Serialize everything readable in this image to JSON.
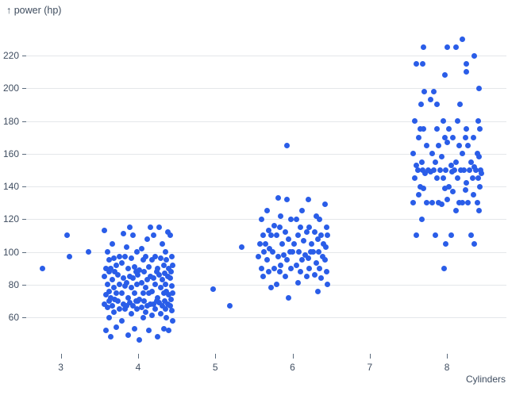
{
  "title": "↑ power (hp)",
  "x_axis": {
    "label": "Cylinders",
    "ticks": [
      "3",
      "4",
      "5",
      "6",
      "7",
      "8"
    ]
  },
  "y_axis": {
    "ticks": [
      "60",
      "80",
      "100",
      "120",
      "140",
      "160",
      "180",
      "200",
      "220"
    ]
  },
  "colors": {
    "dot": "#2a5de8",
    "grid": "#e4e7ea",
    "text": "#3f4d60"
  },
  "chart_data": {
    "type": "scatter",
    "title": "↑ power (hp)",
    "xlabel": "Cylinders",
    "ylabel": "power (hp)",
    "x_domain": [
      2.5,
      8.77
    ],
    "y_domain": [
      60,
      220
    ],
    "x_ticks": [
      3,
      4,
      5,
      6,
      7,
      8
    ],
    "y_ticks": [
      60,
      80,
      100,
      120,
      140,
      160,
      180,
      200,
      220
    ],
    "grid": "horizontal",
    "legend": "none",
    "marker_diameter_px": 7,
    "jitter": "x jittered within ±0.45 of cylinder count",
    "points": [
      [
        2.76,
        90
      ],
      [
        3.08,
        110
      ],
      [
        3.11,
        97
      ],
      [
        3.36,
        100
      ],
      [
        4.02,
        46
      ],
      [
        3.65,
        48
      ],
      [
        4.25,
        48
      ],
      [
        3.87,
        49
      ],
      [
        4.4,
        52
      ],
      [
        3.58,
        52
      ],
      [
        4.14,
        52
      ],
      [
        3.95,
        53
      ],
      [
        4.33,
        53
      ],
      [
        3.72,
        54
      ],
      [
        4.45,
        58
      ],
      [
        3.79,
        58
      ],
      [
        4.07,
        60
      ],
      [
        4.37,
        60
      ],
      [
        3.62,
        60
      ],
      [
        4.18,
        61
      ],
      [
        3.91,
        62
      ],
      [
        4.29,
        62
      ],
      [
        3.69,
        63
      ],
      [
        4.1,
        63
      ],
      [
        4.44,
        64
      ],
      [
        3.83,
        65
      ],
      [
        4.22,
        65
      ],
      [
        3.76,
        65
      ],
      [
        3.98,
        65
      ],
      [
        4.35,
        65
      ],
      [
        3.6,
        66
      ],
      [
        4.05,
        66
      ],
      [
        3.85,
        67
      ],
      [
        4.31,
        67
      ],
      [
        3.67,
        67
      ],
      [
        4.12,
        67
      ],
      [
        4.42,
        67
      ],
      [
        3.93,
        67
      ],
      [
        4.2,
        68
      ],
      [
        3.81,
        68
      ],
      [
        4.39,
        68
      ],
      [
        3.56,
        68
      ],
      [
        4.16,
        68
      ],
      [
        3.89,
        69
      ],
      [
        4.27,
        69
      ],
      [
        3.74,
        70
      ],
      [
        4.0,
        70
      ],
      [
        4.34,
        70
      ],
      [
        3.63,
        70
      ],
      [
        4.08,
        70
      ],
      [
        4.24,
        70
      ],
      [
        3.97,
        70
      ],
      [
        3.7,
        71
      ],
      [
        4.43,
        71
      ],
      [
        4.02,
        71
      ],
      [
        3.65,
        72
      ],
      [
        4.25,
        72
      ],
      [
        3.87,
        72
      ],
      [
        4.4,
        74
      ],
      [
        3.58,
        74
      ],
      [
        4.14,
        75
      ],
      [
        3.95,
        75
      ],
      [
        4.33,
        75
      ],
      [
        3.72,
        75
      ],
      [
        4.45,
        75
      ],
      [
        3.79,
        75
      ],
      [
        4.07,
        75
      ],
      [
        4.37,
        76
      ],
      [
        3.62,
        76
      ],
      [
        4.18,
        76
      ],
      [
        3.91,
        78
      ],
      [
        4.29,
        78
      ],
      [
        3.69,
        78
      ],
      [
        4.1,
        78
      ],
      [
        4.44,
        79
      ],
      [
        3.83,
        79
      ],
      [
        4.22,
        80
      ],
      [
        3.76,
        80
      ],
      [
        3.98,
        80
      ],
      [
        4.35,
        80
      ],
      [
        3.6,
        80
      ],
      [
        4.05,
        81
      ],
      [
        3.85,
        81
      ],
      [
        4.31,
        83
      ],
      [
        3.67,
        83
      ],
      [
        4.12,
        83
      ],
      [
        4.42,
        84
      ],
      [
        3.93,
        84
      ],
      [
        4.2,
        84
      ],
      [
        3.81,
        84
      ],
      [
        4.39,
        85
      ],
      [
        3.56,
        85
      ],
      [
        4.16,
        85
      ],
      [
        3.89,
        85
      ],
      [
        4.27,
        86
      ],
      [
        3.74,
        86
      ],
      [
        4.0,
        86
      ],
      [
        4.34,
        87
      ],
      [
        3.63,
        88
      ],
      [
        4.08,
        88
      ],
      [
        4.24,
        88
      ],
      [
        3.97,
        88
      ],
      [
        3.7,
        88
      ],
      [
        4.43,
        88
      ],
      [
        4.02,
        89
      ],
      [
        3.65,
        90
      ],
      [
        4.25,
        90
      ],
      [
        3.87,
        90
      ],
      [
        4.4,
        90
      ],
      [
        3.58,
        90
      ],
      [
        4.14,
        91
      ],
      [
        3.95,
        91
      ],
      [
        4.33,
        92
      ],
      [
        3.72,
        92
      ],
      [
        4.45,
        92
      ],
      [
        3.79,
        93
      ],
      [
        4.07,
        95
      ],
      [
        4.37,
        95
      ],
      [
        3.62,
        95
      ],
      [
        4.18,
        95
      ],
      [
        3.91,
        96
      ],
      [
        4.29,
        96
      ],
      [
        3.69,
        96
      ],
      [
        4.1,
        97
      ],
      [
        4.44,
        97
      ],
      [
        3.83,
        97
      ],
      [
        4.22,
        97
      ],
      [
        3.76,
        97
      ],
      [
        3.98,
        100
      ],
      [
        4.35,
        100
      ],
      [
        3.6,
        100
      ],
      [
        4.05,
        102
      ],
      [
        3.85,
        103
      ],
      [
        4.31,
        105
      ],
      [
        3.67,
        105
      ],
      [
        4.12,
        108
      ],
      [
        4.42,
        110
      ],
      [
        3.93,
        110
      ],
      [
        4.2,
        110
      ],
      [
        3.81,
        111
      ],
      [
        4.39,
        112
      ],
      [
        3.56,
        113
      ],
      [
        4.16,
        115
      ],
      [
        3.89,
        115
      ],
      [
        4.27,
        115
      ],
      [
        4.97,
        77
      ],
      [
        5.19,
        67
      ],
      [
        5.34,
        103
      ],
      [
        5.95,
        72
      ],
      [
        6.33,
        76
      ],
      [
        5.72,
        78
      ],
      [
        6.45,
        80
      ],
      [
        5.79,
        80
      ],
      [
        6.07,
        81
      ],
      [
        6.37,
        84
      ],
      [
        5.62,
        85
      ],
      [
        6.18,
        85
      ],
      [
        5.91,
        85
      ],
      [
        6.29,
        86
      ],
      [
        5.69,
        88
      ],
      [
        6.1,
        88
      ],
      [
        6.44,
        88
      ],
      [
        5.83,
        88
      ],
      [
        6.22,
        90
      ],
      [
        5.76,
        90
      ],
      [
        5.98,
        90
      ],
      [
        6.35,
        90
      ],
      [
        5.6,
        90
      ],
      [
        6.05,
        92
      ],
      [
        5.85,
        92
      ],
      [
        6.31,
        93
      ],
      [
        5.67,
        95
      ],
      [
        6.12,
        95
      ],
      [
        6.42,
        95
      ],
      [
        5.93,
        95
      ],
      [
        6.2,
        96
      ],
      [
        5.81,
        97
      ],
      [
        6.39,
        97
      ],
      [
        5.56,
        97
      ],
      [
        6.16,
        98
      ],
      [
        5.89,
        98
      ],
      [
        6.27,
        100
      ],
      [
        5.74,
        100
      ],
      [
        6.0,
        100
      ],
      [
        6.34,
        100
      ],
      [
        5.63,
        100
      ],
      [
        6.08,
        100
      ],
      [
        6.24,
        100
      ],
      [
        5.97,
        100
      ],
      [
        5.7,
        102
      ],
      [
        6.43,
        103
      ],
      [
        6.02,
        105
      ],
      [
        5.65,
        105
      ],
      [
        6.25,
        105
      ],
      [
        5.87,
        105
      ],
      [
        6.4,
        105
      ],
      [
        5.58,
        105
      ],
      [
        6.14,
        107
      ],
      [
        5.95,
        108
      ],
      [
        6.33,
        108
      ],
      [
        5.72,
        110
      ],
      [
        6.45,
        110
      ],
      [
        5.79,
        110
      ],
      [
        6.07,
        110
      ],
      [
        6.37,
        110
      ],
      [
        5.62,
        110
      ],
      [
        6.18,
        112
      ],
      [
        5.91,
        112
      ],
      [
        6.29,
        112
      ],
      [
        5.69,
        113
      ],
      [
        6.1,
        115
      ],
      [
        6.44,
        115
      ],
      [
        5.83,
        115
      ],
      [
        6.22,
        115
      ],
      [
        5.76,
        116
      ],
      [
        5.98,
        120
      ],
      [
        6.35,
        120
      ],
      [
        5.6,
        120
      ],
      [
        6.05,
        120
      ],
      [
        5.85,
        122
      ],
      [
        6.31,
        122
      ],
      [
        5.67,
        125
      ],
      [
        6.12,
        125
      ],
      [
        6.42,
        129
      ],
      [
        5.93,
        132
      ],
      [
        6.2,
        132
      ],
      [
        5.81,
        133
      ],
      [
        5.93,
        165
      ],
      [
        7.96,
        90
      ],
      [
        7.98,
        105
      ],
      [
        8.35,
        105
      ],
      [
        7.6,
        110
      ],
      [
        8.05,
        110
      ],
      [
        7.85,
        110
      ],
      [
        8.31,
        110
      ],
      [
        7.67,
        120
      ],
      [
        8.12,
        125
      ],
      [
        8.42,
        125
      ],
      [
        7.93,
        129
      ],
      [
        8.2,
        130
      ],
      [
        7.81,
        130
      ],
      [
        8.39,
        130
      ],
      [
        7.56,
        130
      ],
      [
        8.16,
        130
      ],
      [
        7.89,
        130
      ],
      [
        8.27,
        130
      ],
      [
        7.74,
        130
      ],
      [
        8.0,
        132
      ],
      [
        8.34,
        135
      ],
      [
        7.63,
        135
      ],
      [
        8.08,
        137
      ],
      [
        8.24,
        138
      ],
      [
        7.97,
        139
      ],
      [
        7.7,
        139
      ],
      [
        8.43,
        140
      ],
      [
        8.02,
        140
      ],
      [
        7.65,
        140
      ],
      [
        8.25,
        142
      ],
      [
        7.87,
        145
      ],
      [
        8.4,
        145
      ],
      [
        7.58,
        145
      ],
      [
        8.14,
        145
      ],
      [
        7.95,
        145
      ],
      [
        8.33,
        145
      ],
      [
        7.72,
        148
      ],
      [
        8.45,
        148
      ],
      [
        7.79,
        149
      ],
      [
        8.07,
        149
      ],
      [
        8.37,
        150
      ],
      [
        7.62,
        150
      ],
      [
        8.18,
        150
      ],
      [
        7.91,
        150
      ],
      [
        8.29,
        150
      ],
      [
        7.69,
        150
      ],
      [
        8.1,
        150
      ],
      [
        8.44,
        150
      ],
      [
        7.83,
        150
      ],
      [
        8.22,
        150
      ],
      [
        7.76,
        150
      ],
      [
        7.98,
        150
      ],
      [
        8.35,
        152
      ],
      [
        7.6,
        153
      ],
      [
        8.05,
        153
      ],
      [
        7.85,
        155
      ],
      [
        8.31,
        155
      ],
      [
        7.67,
        155
      ],
      [
        8.12,
        155
      ],
      [
        8.42,
        158
      ],
      [
        7.93,
        158
      ],
      [
        8.2,
        160
      ],
      [
        7.81,
        160
      ],
      [
        8.39,
        160
      ],
      [
        7.56,
        160
      ],
      [
        8.16,
        165
      ],
      [
        7.89,
        165
      ],
      [
        8.27,
        165
      ],
      [
        7.74,
        165
      ],
      [
        8.0,
        167
      ],
      [
        8.34,
        170
      ],
      [
        7.63,
        170
      ],
      [
        8.08,
        170
      ],
      [
        8.24,
        170
      ],
      [
        7.97,
        170
      ],
      [
        7.7,
        175
      ],
      [
        8.43,
        175
      ],
      [
        8.02,
        175
      ],
      [
        7.65,
        175
      ],
      [
        8.25,
        175
      ],
      [
        7.87,
        175
      ],
      [
        8.4,
        180
      ],
      [
        7.58,
        180
      ],
      [
        8.14,
        180
      ],
      [
        7.95,
        180
      ],
      [
        8.17,
        190
      ],
      [
        7.66,
        190
      ],
      [
        7.87,
        190
      ],
      [
        7.79,
        193
      ],
      [
        7.71,
        198
      ],
      [
        7.83,
        198
      ],
      [
        8.41,
        200
      ],
      [
        7.97,
        208
      ],
      [
        8.25,
        210
      ],
      [
        7.6,
        215
      ],
      [
        7.69,
        215
      ],
      [
        8.25,
        215
      ],
      [
        8.35,
        220
      ],
      [
        7.7,
        225
      ],
      [
        8.0,
        225
      ],
      [
        8.12,
        225
      ],
      [
        8.2,
        230
      ]
    ]
  }
}
